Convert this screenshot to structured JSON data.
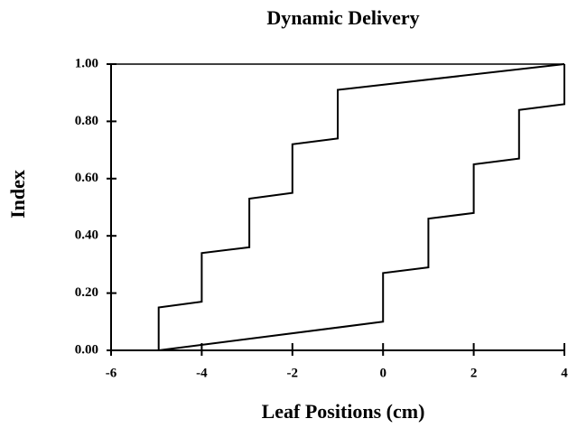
{
  "chart_data": {
    "type": "line",
    "title": "Dynamic Delivery",
    "xlabel": "Leaf Positions (cm)",
    "ylabel": "Index",
    "xlim": [
      -6,
      4
    ],
    "xticks": [
      -6,
      -4,
      -2,
      0,
      2,
      4
    ],
    "ylim": [
      0,
      1
    ],
    "yticks": [
      {
        "value": 0,
        "label": "0.00"
      },
      {
        "value": 0.2,
        "label": "0.20"
      },
      {
        "value": 0.4,
        "label": "0.40"
      },
      {
        "value": 0.6,
        "label": "0.60"
      },
      {
        "value": 0.8,
        "label": "0.80"
      },
      {
        "value": 1,
        "label": "1.00"
      }
    ],
    "series": [
      {
        "color": "#000000",
        "x": [
          -4.95,
          -4.95,
          -4,
          -4,
          -2.95,
          -2.95,
          -2,
          -2,
          -1,
          -1,
          4
        ],
        "values": [
          0,
          0.15,
          0.17,
          0.34,
          0.36,
          0.53,
          0.55,
          0.72,
          0.74,
          0.91,
          1.0
        ]
      },
      {
        "color": "#000000",
        "x": [
          -4.95,
          0,
          0,
          1,
          1,
          2,
          2,
          3,
          3,
          4,
          4
        ],
        "values": [
          0,
          0.1,
          0.27,
          0.29,
          0.46,
          0.48,
          0.65,
          0.67,
          0.84,
          0.86,
          1.0
        ]
      }
    ]
  }
}
